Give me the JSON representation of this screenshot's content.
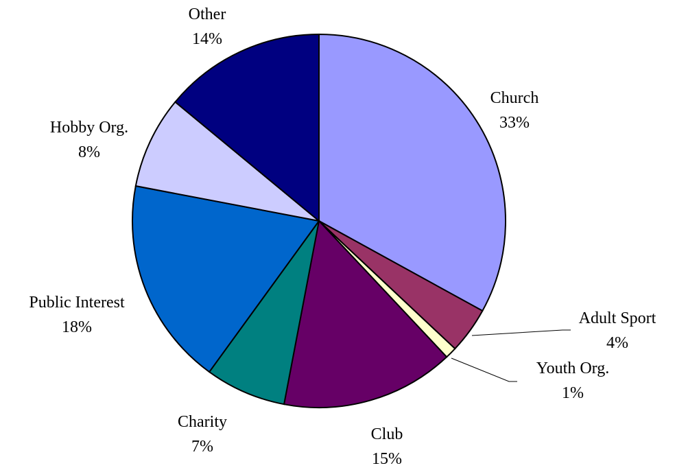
{
  "chart_data": {
    "type": "pie",
    "title": "",
    "start": "12 o'clock",
    "direction": "clockwise",
    "slices": [
      {
        "label": "Church",
        "value": 33,
        "value_label": "33%",
        "color": "#9999FF"
      },
      {
        "label": "Adult Sport",
        "value": 4,
        "value_label": "4%",
        "color": "#993366"
      },
      {
        "label": "Youth Org.",
        "value": 1,
        "value_label": "1%",
        "color": "#FFFFCC"
      },
      {
        "label": "Club",
        "value": 15,
        "value_label": "15%",
        "color": "#660066"
      },
      {
        "label": "Charity",
        "value": 7,
        "value_label": "7%",
        "color": "#008080"
      },
      {
        "label": "Public Interest",
        "value": 18,
        "value_label": "18%",
        "color": "#0066CC"
      },
      {
        "label": "Hobby Org.",
        "value": 8,
        "value_label": "8%",
        "color": "#CCCCFF"
      },
      {
        "label": "Other",
        "value": 14,
        "value_label": "14%",
        "color": "#000080"
      }
    ]
  }
}
